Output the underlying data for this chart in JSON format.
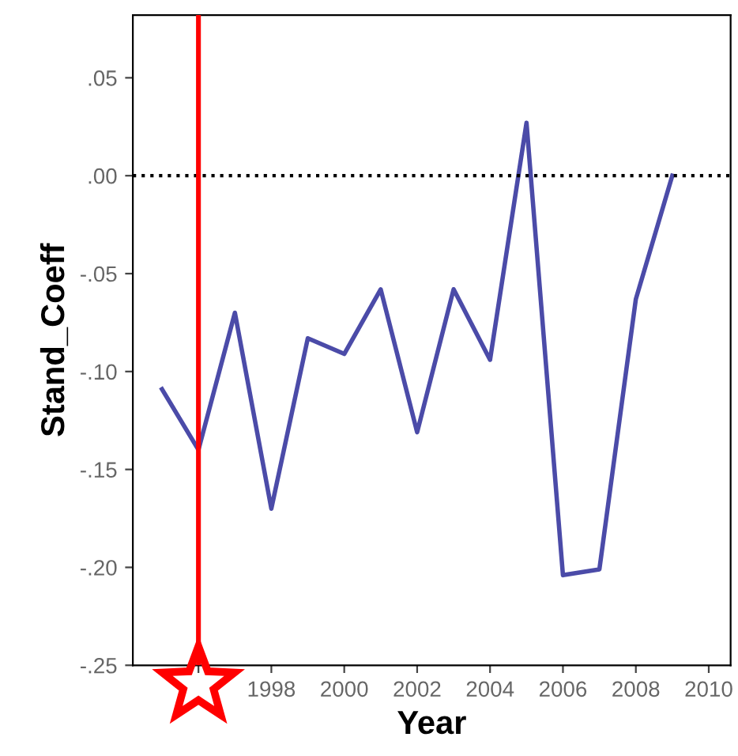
{
  "chart_data": {
    "type": "line",
    "xlabel": "Year",
    "ylabel": "Stand_Coeff",
    "x": [
      1995,
      1996,
      1997,
      1998,
      1999,
      2000,
      2001,
      2002,
      2003,
      2004,
      2005,
      2006,
      2007,
      2008,
      2009
    ],
    "series": [
      {
        "color": "#4b4ba8",
        "values": [
          -0.109,
          -0.14,
          -0.07,
          -0.17,
          -0.083,
          -0.091,
          -0.058,
          -0.131,
          -0.058,
          -0.094,
          0.027,
          -0.204,
          -0.201,
          -0.063,
          0.0
        ]
      }
    ],
    "xlim": [
      1994.2,
      2010.6
    ],
    "xticks": [
      {
        "value": 1996,
        "label": null
      },
      1998,
      2000,
      2002,
      2004,
      2006,
      2008,
      2010
    ],
    "ylim": [
      -0.25,
      0.082
    ],
    "yticks": [
      {
        "value": 0.05,
        "label": ".05"
      },
      {
        "value": 0.0,
        "label": ".00"
      },
      {
        "value": -0.05,
        "label": "-.05"
      },
      {
        "value": -0.1,
        "label": "-.10"
      },
      {
        "value": -0.15,
        "label": "-.15"
      },
      {
        "value": -0.2,
        "label": "-.20"
      },
      {
        "value": -0.25,
        "label": "-.25"
      }
    ],
    "ref_lines": [
      {
        "axis": "y",
        "value": 0.0,
        "color": "#000000",
        "line_style": "dotted"
      },
      {
        "axis": "x",
        "value": 1996,
        "color": "#ff0000",
        "line_style": "solid"
      }
    ],
    "grid": false,
    "marker": "none",
    "line_style": "solid"
  }
}
